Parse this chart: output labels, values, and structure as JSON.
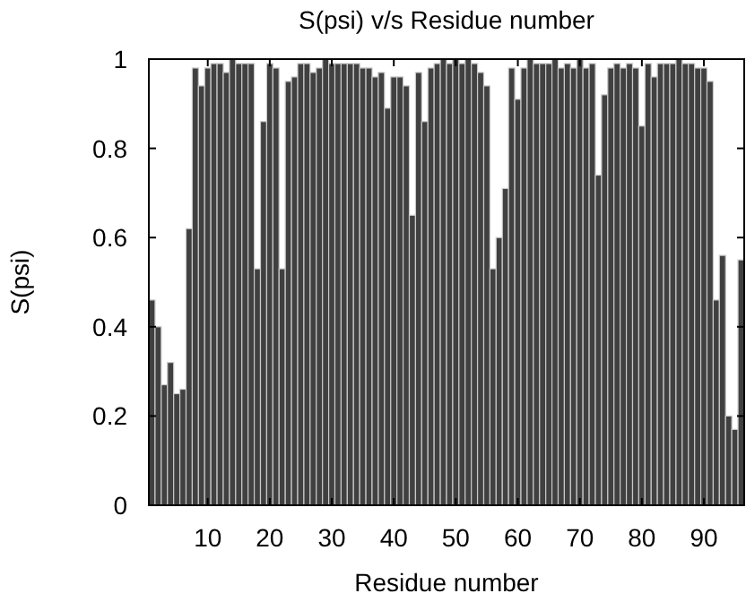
{
  "chart_data": {
    "type": "bar",
    "title": "S(psi) v/s Residue number",
    "xlabel": "Residue number",
    "ylabel": "S(psi)",
    "x": [
      1,
      2,
      3,
      4,
      5,
      6,
      7,
      8,
      9,
      10,
      11,
      12,
      13,
      14,
      15,
      16,
      17,
      18,
      19,
      20,
      21,
      22,
      23,
      24,
      25,
      26,
      27,
      28,
      29,
      30,
      31,
      32,
      33,
      34,
      35,
      36,
      37,
      38,
      39,
      40,
      41,
      42,
      43,
      44,
      45,
      46,
      47,
      48,
      49,
      50,
      51,
      52,
      53,
      54,
      55,
      56,
      57,
      58,
      59,
      60,
      61,
      62,
      63,
      64,
      65,
      66,
      67,
      68,
      69,
      70,
      71,
      72,
      73,
      74,
      75,
      76,
      77,
      78,
      79,
      80,
      81,
      82,
      83,
      84,
      85,
      86,
      87,
      88,
      89,
      90,
      91,
      92,
      93,
      94,
      95,
      96
    ],
    "values": [
      0.46,
      0.4,
      0.27,
      0.32,
      0.25,
      0.26,
      0.62,
      0.98,
      0.94,
      0.98,
      0.99,
      0.99,
      0.97,
      1.0,
      0.99,
      0.99,
      0.99,
      0.53,
      0.86,
      0.99,
      0.98,
      0.53,
      0.95,
      0.96,
      0.99,
      0.99,
      0.97,
      0.98,
      1.0,
      0.99,
      0.99,
      0.99,
      0.99,
      0.99,
      0.98,
      0.98,
      0.96,
      0.97,
      0.89,
      0.96,
      0.96,
      0.94,
      0.65,
      0.97,
      0.86,
      0.98,
      0.99,
      1.0,
      0.99,
      1.0,
      0.99,
      1.0,
      0.99,
      0.97,
      0.94,
      0.53,
      0.6,
      0.71,
      0.98,
      0.91,
      0.98,
      1.0,
      0.99,
      0.99,
      0.99,
      1.0,
      0.98,
      0.99,
      0.98,
      1.0,
      0.98,
      0.99,
      0.74,
      0.92,
      0.98,
      0.99,
      0.98,
      0.99,
      0.98,
      0.85,
      0.99,
      0.96,
      0.99,
      0.99,
      0.99,
      1.0,
      0.99,
      0.99,
      0.98,
      0.98,
      0.95,
      0.46,
      0.56,
      0.2,
      0.17,
      0.55
    ],
    "color": "#404040",
    "xlim": [
      0.5,
      96.5
    ],
    "xticks": [
      10,
      20,
      30,
      40,
      50,
      60,
      70,
      80,
      90
    ],
    "ylim": [
      0,
      1
    ],
    "yticks": [
      0,
      {
        "value": 0.2,
        "label": "0.2"
      },
      {
        "value": 0.4,
        "label": "0.4"
      },
      {
        "value": 0.6,
        "label": "0.6"
      },
      {
        "value": 0.8,
        "label": "0.8"
      },
      1
    ],
    "grid": false
  }
}
